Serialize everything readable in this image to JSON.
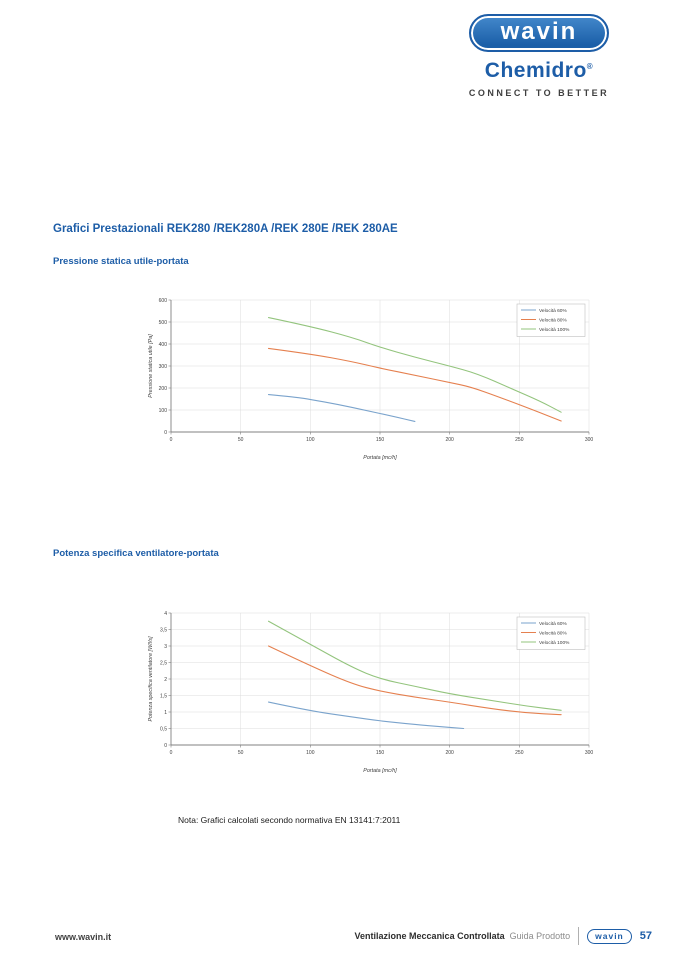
{
  "header": {
    "logo_text": "wavin",
    "sub_logo_text": "Chemidro",
    "registered_mark": "®",
    "tagline": "CONNECT TO BETTER",
    "brand_blue": "#1d5da7"
  },
  "titles": {
    "main": "Grafici Prestazionali REK280 /REK280A /REK 280E /REK 280AE",
    "chart1": "Pressione statica utile-portata",
    "chart2": "Potenza specifica ventilatore-portata"
  },
  "note": "Nota: Grafici calcolati secondo normativa EN 13141:7:2011",
  "footer": {
    "website": "www.wavin.it",
    "doc_title": "Ventilazione Meccanica Controllata",
    "doc_subtitle": "Guida Prodotto",
    "logo_text": "wavin",
    "page_number": "57"
  },
  "chart_data": [
    {
      "type": "line",
      "title": "Pressione statica utile-portata",
      "xlabel": "Portata [mc/h]",
      "ylabel": "Pressione statica utile [Pa]",
      "xlim": [
        0,
        300
      ],
      "ylim": [
        0,
        600
      ],
      "xticks": [
        0,
        50,
        100,
        150,
        200,
        250,
        300
      ],
      "xtick_labels": [
        "0",
        "50",
        "100",
        "150",
        "200",
        "250",
        "300"
      ],
      "yticks": [
        0,
        100,
        200,
        300,
        400,
        500,
        600
      ],
      "ytick_labels": [
        "0",
        "100",
        "200",
        "300",
        "400",
        "500",
        "600"
      ],
      "grid": true,
      "legend_position": "top-right",
      "series": [
        {
          "name": "Velocità 60%",
          "color": "#7aa3cc",
          "points": [
            [
              70,
              170
            ],
            [
              90,
              158
            ],
            [
              100,
              148
            ],
            [
              120,
              125
            ],
            [
              140,
              98
            ],
            [
              160,
              70
            ],
            [
              175,
              48
            ]
          ]
        },
        {
          "name": "Velocità 80%",
          "color": "#e5804f",
          "points": [
            [
              70,
              380
            ],
            [
              100,
              355
            ],
            [
              130,
              320
            ],
            [
              150,
              290
            ],
            [
              175,
              258
            ],
            [
              200,
              225
            ],
            [
              215,
              205
            ],
            [
              235,
              160
            ],
            [
              260,
              100
            ],
            [
              280,
              50
            ]
          ]
        },
        {
          "name": "Velocità 100%",
          "color": "#93c47d",
          "points": [
            [
              70,
              520
            ],
            [
              100,
              480
            ],
            [
              130,
              430
            ],
            [
              150,
              385
            ],
            [
              175,
              340
            ],
            [
              200,
              300
            ],
            [
              220,
              265
            ],
            [
              245,
              195
            ],
            [
              265,
              140
            ],
            [
              280,
              90
            ]
          ]
        }
      ]
    },
    {
      "type": "line",
      "title": "Potenza specifica ventilatore-portata",
      "xlabel": "Portata [mc/h]",
      "ylabel": "Potenza specifica ventilatore [W/l/s]",
      "xlim": [
        0,
        300
      ],
      "ylim": [
        0,
        4
      ],
      "xticks": [
        0,
        50,
        100,
        150,
        200,
        250,
        300
      ],
      "xtick_labels": [
        "0",
        "50",
        "100",
        "150",
        "200",
        "250",
        "300"
      ],
      "yticks": [
        0,
        0.5,
        1,
        1.5,
        2,
        2.5,
        3,
        3.5,
        4
      ],
      "ytick_labels": [
        "0",
        "0,5",
        "1",
        "1,5",
        "2",
        "2,5",
        "3",
        "3,5",
        "4"
      ],
      "grid": true,
      "legend_position": "top-right",
      "series": [
        {
          "name": "Velocità 60%",
          "color": "#7aa3cc",
          "points": [
            [
              70,
              1.3
            ],
            [
              100,
              1.03
            ],
            [
              130,
              0.85
            ],
            [
              150,
              0.73
            ],
            [
              175,
              0.62
            ],
            [
              195,
              0.55
            ],
            [
              210,
              0.5
            ]
          ]
        },
        {
          "name": "Velocità 80%",
          "color": "#e5804f",
          "points": [
            [
              70,
              3.0
            ],
            [
              100,
              2.4
            ],
            [
              130,
              1.85
            ],
            [
              150,
              1.63
            ],
            [
              175,
              1.45
            ],
            [
              200,
              1.3
            ],
            [
              230,
              1.1
            ],
            [
              255,
              0.97
            ],
            [
              280,
              0.92
            ]
          ]
        },
        {
          "name": "Velocità 100%",
          "color": "#93c47d",
          "points": [
            [
              70,
              3.75
            ],
            [
              100,
              3.05
            ],
            [
              130,
              2.35
            ],
            [
              150,
              2.0
            ],
            [
              175,
              1.78
            ],
            [
              200,
              1.55
            ],
            [
              230,
              1.35
            ],
            [
              255,
              1.18
            ],
            [
              280,
              1.05
            ]
          ]
        }
      ]
    }
  ]
}
